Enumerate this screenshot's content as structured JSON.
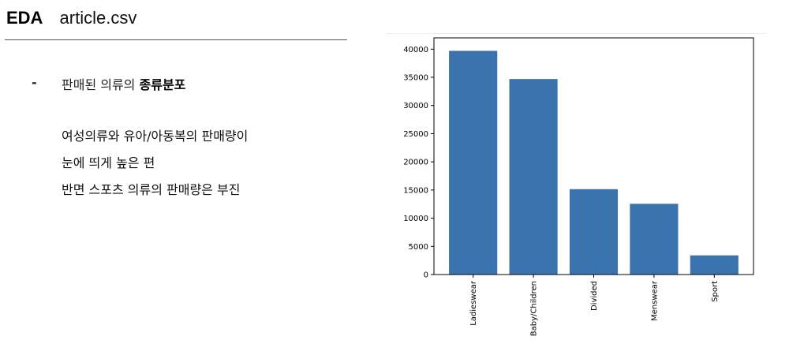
{
  "header": {
    "title": "EDA",
    "subtitle": "article.csv"
  },
  "bullet": {
    "mark": "-",
    "heading_normal": "판매된 의류의 ",
    "heading_bold": "종류분포",
    "lines": [
      "여성의류와 유아/아동복의 판매량이",
      "눈에 띄게 높은 편",
      "반면 스포츠 의류의 판매량은 부진"
    ]
  },
  "chart_data": {
    "type": "bar",
    "categories": [
      "Ladieswear",
      "Baby/Children",
      "Divided",
      "Menswear",
      "Sport"
    ],
    "values": [
      39700,
      34700,
      15150,
      12550,
      3400
    ],
    "ylim": [
      0,
      42000
    ],
    "yticks": [
      0,
      5000,
      10000,
      15000,
      20000,
      25000,
      30000,
      35000,
      40000
    ],
    "title": "",
    "xlabel": "",
    "ylabel": "",
    "bar_color": "#3a73ae",
    "grid": false,
    "legend": "none"
  }
}
